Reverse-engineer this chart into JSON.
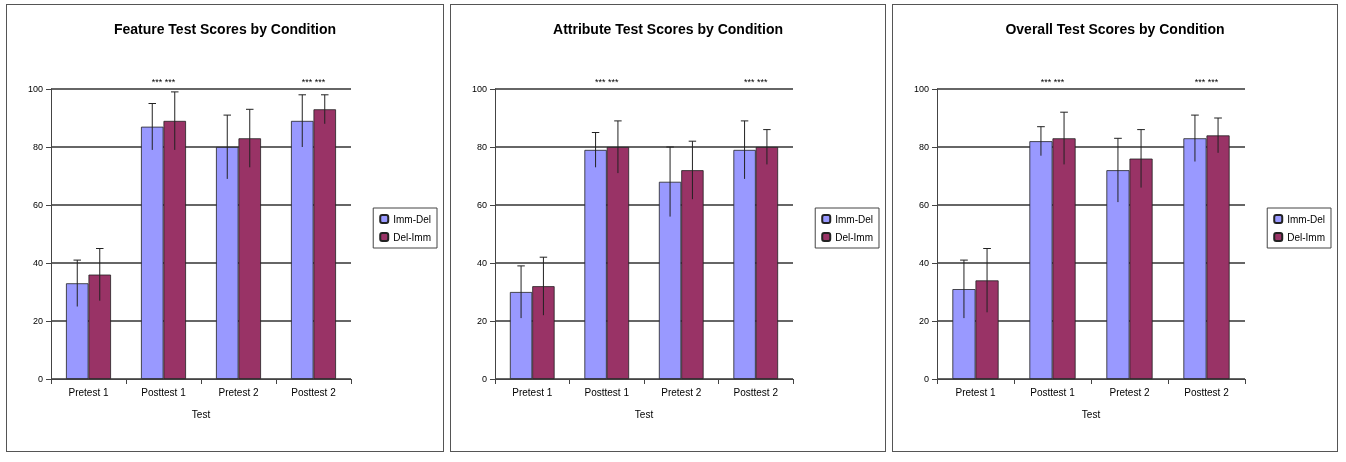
{
  "chart_data": [
    {
      "type": "bar",
      "title": "Feature Test Scores by Condition",
      "xlabel": "Test",
      "categories": [
        "Pretest 1",
        "Posttest 1",
        "Pretest 2",
        "Posttest 2"
      ],
      "series": [
        {
          "name": "Imm-Del",
          "color": "#9999ff",
          "values": [
            33,
            87,
            80,
            89
          ],
          "errors": [
            8,
            8,
            11,
            9
          ]
        },
        {
          "name": "Del-Imm",
          "color": "#993366",
          "values": [
            36,
            89,
            83,
            93
          ],
          "errors": [
            9,
            10,
            10,
            5
          ]
        }
      ],
      "ylim": [
        0,
        100
      ],
      "yticks": [
        0,
        20,
        40,
        60,
        80,
        100
      ],
      "grid": "y",
      "legend": "right",
      "annotations": [
        "*** ***",
        "*** ***"
      ]
    },
    {
      "type": "bar",
      "title": "Attribute Test Scores by Condition",
      "xlabel": "Test",
      "categories": [
        "Pretest 1",
        "Posttest 1",
        "Pretest 2",
        "Posttest 2"
      ],
      "series": [
        {
          "name": "Imm-Del",
          "color": "#9999ff",
          "values": [
            30,
            79,
            68,
            79
          ],
          "errors": [
            9,
            6,
            12,
            10
          ]
        },
        {
          "name": "Del-Imm",
          "color": "#993366",
          "values": [
            32,
            80,
            72,
            80
          ],
          "errors": [
            10,
            9,
            10,
            6
          ]
        }
      ],
      "ylim": [
        0,
        100
      ],
      "yticks": [
        0,
        20,
        40,
        60,
        80,
        100
      ],
      "grid": "y",
      "legend": "right",
      "annotations": [
        "*** ***",
        "*** ***"
      ]
    },
    {
      "type": "bar",
      "title": "Overall Test Scores by Condition",
      "xlabel": "Test",
      "categories": [
        "Pretest 1",
        "Posttest 1",
        "Pretest 2",
        "Posttest 2"
      ],
      "series": [
        {
          "name": "Imm-Del",
          "color": "#9999ff",
          "values": [
            31,
            82,
            72,
            83
          ],
          "errors": [
            10,
            5,
            11,
            8
          ]
        },
        {
          "name": "Del-Imm",
          "color": "#993366",
          "values": [
            34,
            83,
            76,
            84
          ],
          "errors": [
            11,
            9,
            10,
            6
          ]
        }
      ],
      "ylim": [
        0,
        100
      ],
      "yticks": [
        0,
        20,
        40,
        60,
        80,
        100
      ],
      "grid": "y",
      "legend": "right",
      "annotations": [
        "*** ***",
        "*** ***"
      ]
    }
  ]
}
